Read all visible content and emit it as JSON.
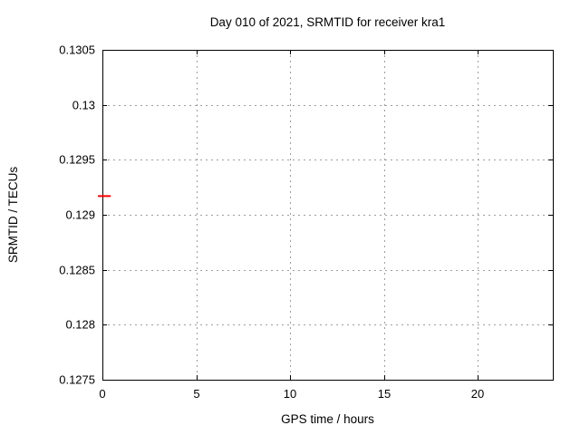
{
  "chart_data": {
    "type": "scatter",
    "title": "Day 010 of 2021, SRMTID for receiver kra1",
    "xlabel": "GPS time / hours",
    "ylabel": "SRMTID / TECUs",
    "xlim": [
      0,
      24
    ],
    "ylim": [
      0.1275,
      0.1305
    ],
    "xticks": [
      0,
      5,
      10,
      15,
      20
    ],
    "xtick_labels": [
      "0",
      "5",
      "10",
      "15",
      "20"
    ],
    "yticks": [
      0.1275,
      0.128,
      0.1285,
      0.129,
      0.1295,
      0.13,
      0.1305
    ],
    "ytick_labels": [
      "0.1275",
      "0.128",
      "0.1285",
      "0.129",
      "0.1295",
      "0.13",
      "0.1305"
    ],
    "grid": true,
    "grid_style": "dotted",
    "legend": "none",
    "colors": {
      "background": "#ffffff",
      "axis": "#000000",
      "grid": "#9e9e9e",
      "text": "#000000",
      "series1": "#ff0000"
    },
    "series": [
      {
        "name": "SRMTID",
        "color": "#ff0000",
        "marker": "horizontal-dash",
        "points": [
          {
            "x": 0.1,
            "y": 0.12917
          }
        ]
      }
    ]
  }
}
